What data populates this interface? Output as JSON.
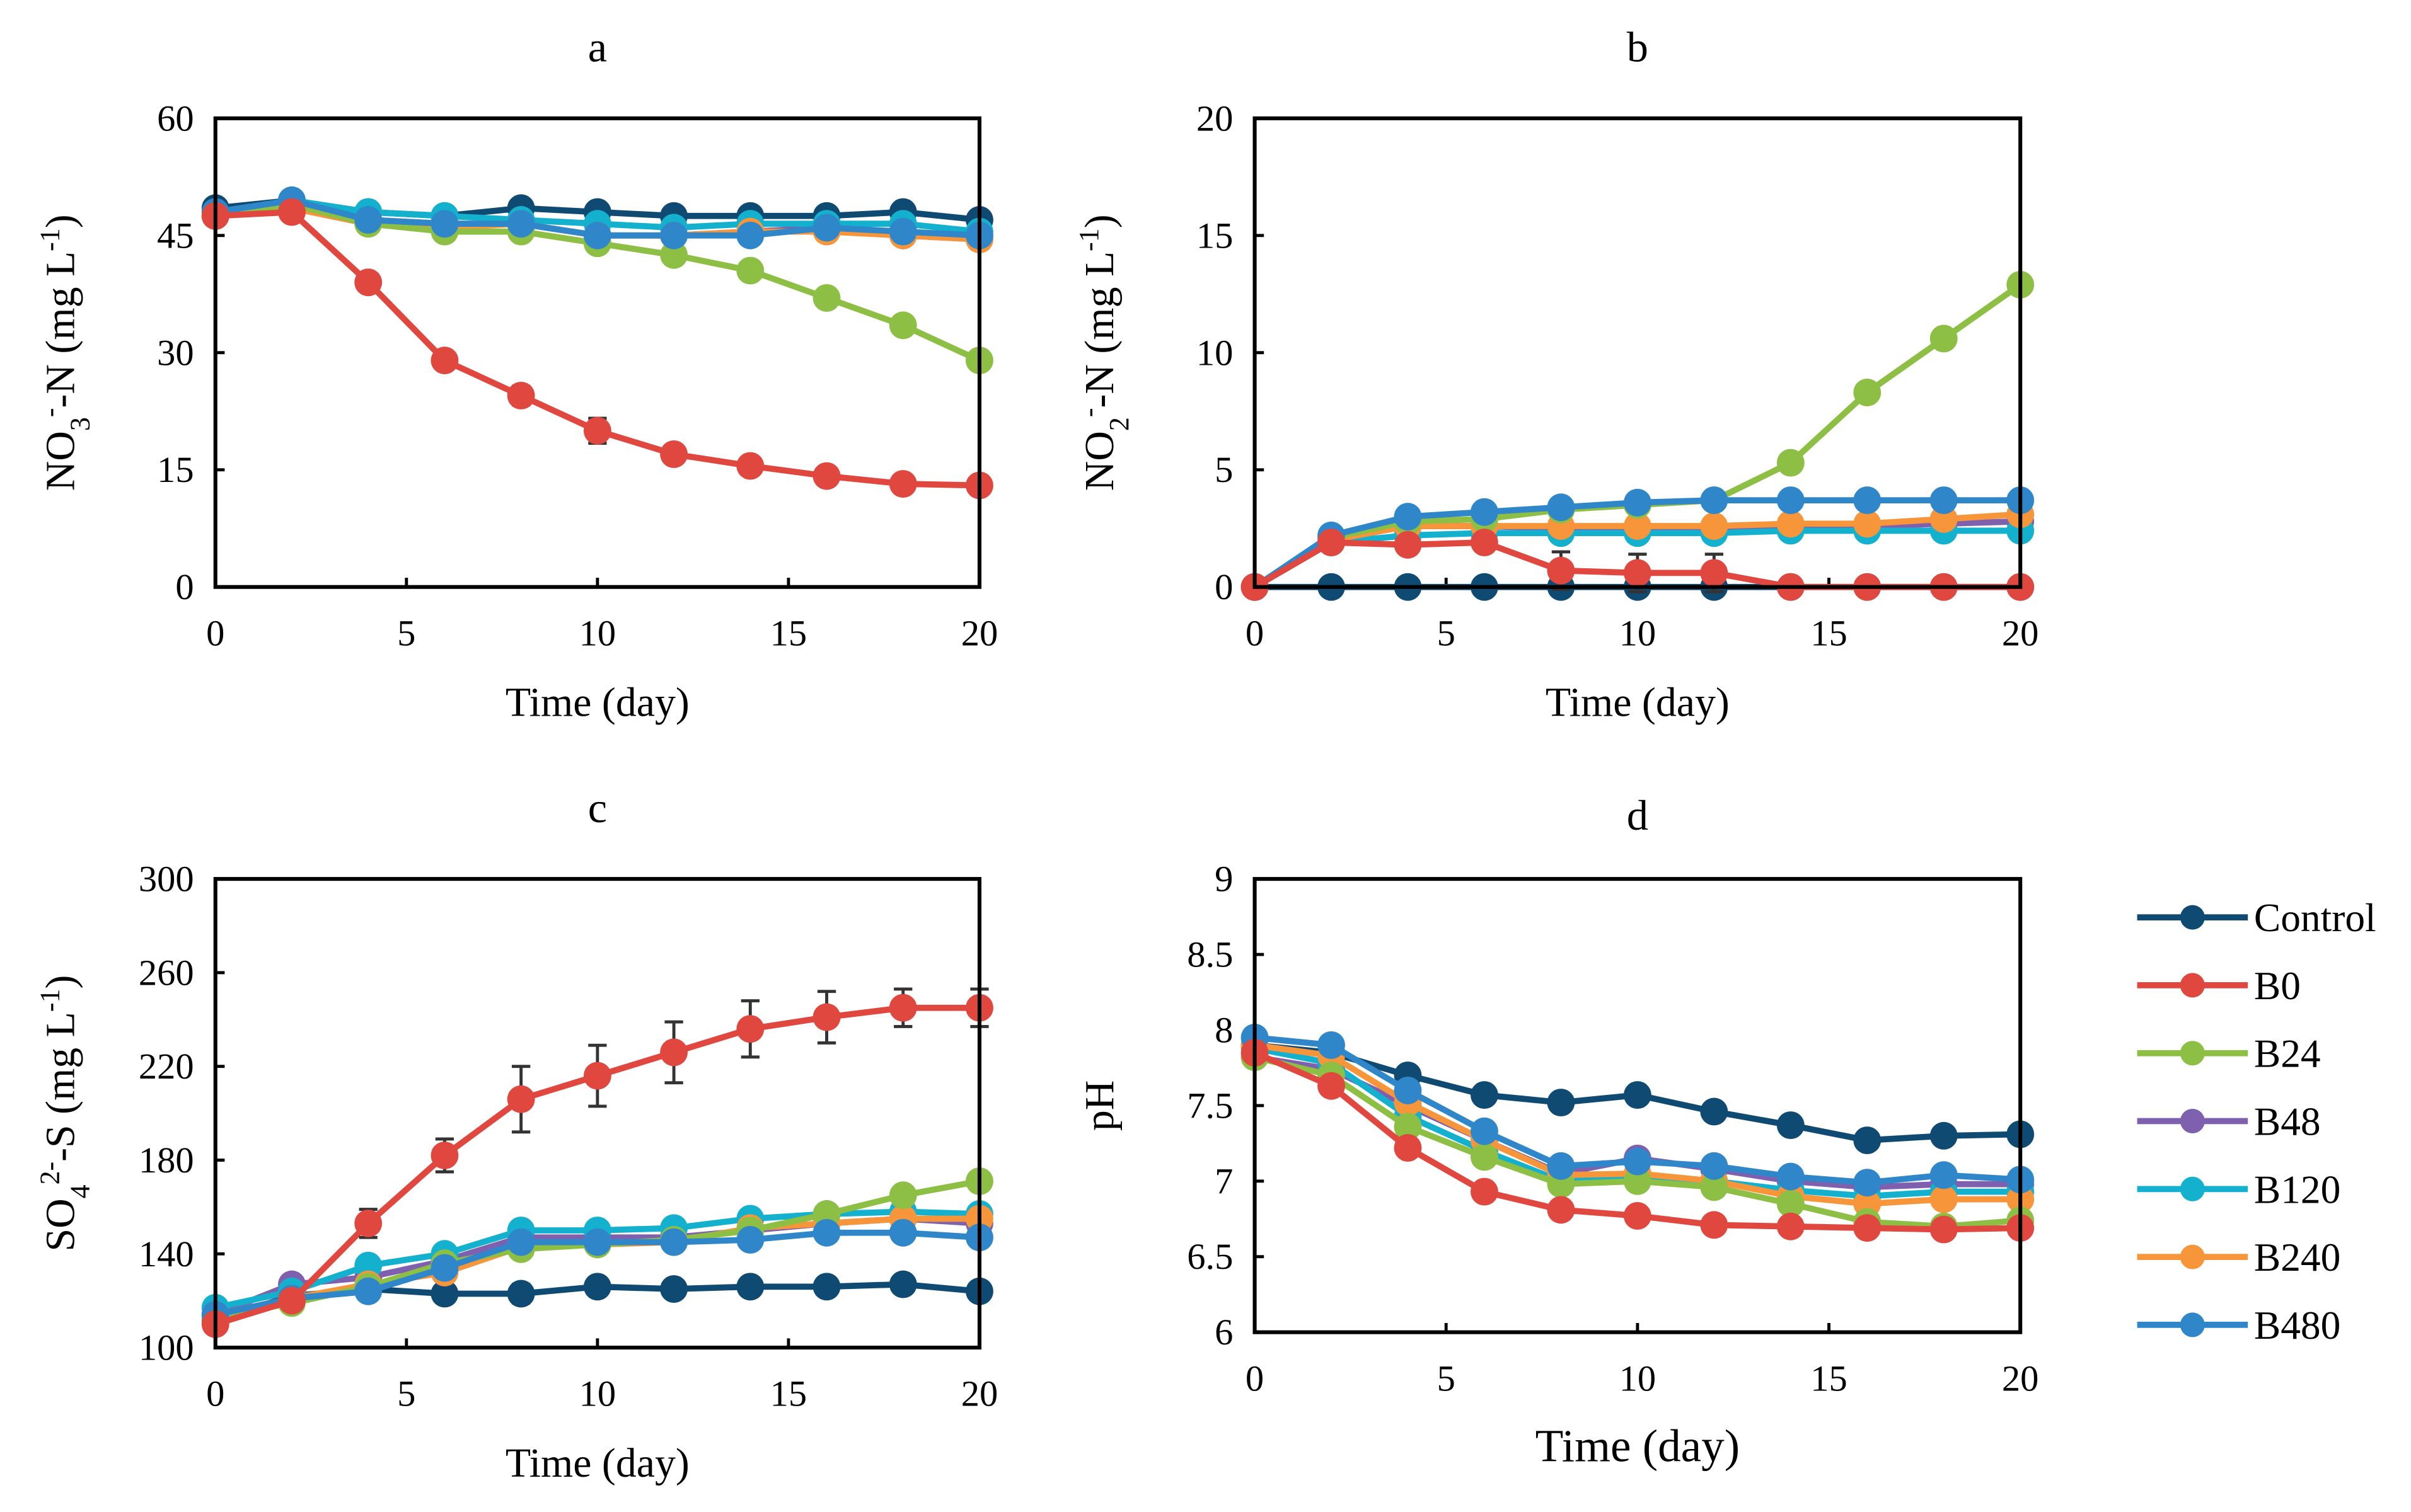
{
  "chart_data": {
    "type": "line",
    "x": [
      0,
      2,
      4,
      6,
      8,
      10,
      12,
      14,
      16,
      18,
      20
    ],
    "xlabel": "Time (day)",
    "xticks": [
      0,
      5,
      10,
      15,
      20
    ],
    "xlim": [
      0,
      20
    ],
    "legend": {
      "placement": "right",
      "entries": [
        "Control",
        "B0",
        "B24",
        "B48",
        "B120",
        "B240",
        "B480"
      ]
    },
    "colors": {
      "Control": "#0f4a73",
      "B0": "#e0473f",
      "B24": "#8dbf45",
      "B48": "#7f60ae",
      "B120": "#14b1cf",
      "B240": "#f7953a",
      "B480": "#2f86c8"
    },
    "panels": [
      {
        "title": "a",
        "ylabel": [
          {
            "t": "NO"
          },
          {
            "t": "3",
            "s": "sub"
          },
          {
            "t": "-",
            "s": "sup"
          },
          {
            "t": "-N (mg L"
          },
          {
            "t": "-1",
            "s": "sup"
          },
          {
            "t": ")"
          }
        ],
        "ylim": [
          0,
          60
        ],
        "yticks": [
          "0",
          "15",
          "30",
          "45",
          "60"
        ],
        "series": [
          {
            "name": "Control",
            "values": [
              48.5,
              49.5,
              48,
              47.5,
              48.5,
              48,
              47.5,
              47.5,
              47.5,
              48,
              47
            ]
          },
          {
            "name": "B0",
            "values": [
              47.5,
              48,
              39,
              29,
              24.5,
              20,
              17,
              15.5,
              14.2,
              13.2,
              13
            ],
            "errors": [
              0,
              0,
              0.5,
              0.8,
              1.2,
              1.6,
              0.8,
              0.5,
              0.5,
              0.5,
              0.5
            ]
          },
          {
            "name": "B24",
            "values": [
              47.5,
              49,
              46.5,
              45.5,
              45.5,
              44,
              42.5,
              40.5,
              37,
              33.5,
              29
            ]
          },
          {
            "name": "B48",
            "values": [
              47.5,
              49,
              47,
              46.5,
              46.5,
              45,
              45,
              45.5,
              46,
              45,
              44.5
            ]
          },
          {
            "name": "B120",
            "values": [
              48,
              49.5,
              48,
              47.5,
              47,
              46.5,
              46,
              46.5,
              46.5,
              46.5,
              45.5
            ]
          },
          {
            "name": "B240",
            "values": [
              47.5,
              48.5,
              46.5,
              46,
              46.5,
              45,
              45,
              45.5,
              45.5,
              45,
              44.5
            ]
          },
          {
            "name": "B480",
            "values": [
              48,
              49.5,
              47,
              46.5,
              46.5,
              45,
              45,
              45,
              46,
              45.5,
              45
            ]
          }
        ]
      },
      {
        "title": "b",
        "ylabel": [
          {
            "t": "NO"
          },
          {
            "t": "2",
            "s": "sub"
          },
          {
            "t": "-",
            "s": "sup"
          },
          {
            "t": "-N (mg L"
          },
          {
            "t": "-1",
            "s": "sup"
          },
          {
            "t": ")"
          }
        ],
        "ylim": [
          0,
          20
        ],
        "yticks": [
          "0",
          "5",
          "10",
          "15",
          "20"
        ],
        "series": [
          {
            "name": "Control",
            "values": [
              0,
              0,
              0,
              0,
              0,
              0,
              0,
              0,
              0,
              0,
              0
            ]
          },
          {
            "name": "B0",
            "values": [
              0,
              1.9,
              1.8,
              1.9,
              0.7,
              0.6,
              0.6,
              0,
              0,
              0,
              0
            ],
            "errors": [
              0,
              0,
              0,
              0,
              0.8,
              0.8,
              0.8,
              0,
              0,
              0,
              0
            ]
          },
          {
            "name": "B24",
            "values": [
              0,
              2.1,
              2.8,
              2.9,
              3.3,
              3.5,
              3.7,
              5.3,
              8.3,
              10.6,
              12.9
            ]
          },
          {
            "name": "B48",
            "values": [
              0,
              2,
              2.6,
              2.6,
              2.5,
              2.5,
              2.5,
              2.6,
              2.6,
              2.7,
              2.8
            ]
          },
          {
            "name": "B120",
            "values": [
              0,
              1.9,
              2.2,
              2.3,
              2.3,
              2.3,
              2.3,
              2.4,
              2.4,
              2.4,
              2.4
            ]
          },
          {
            "name": "B240",
            "values": [
              0,
              2,
              2.6,
              2.6,
              2.6,
              2.6,
              2.6,
              2.7,
              2.7,
              2.9,
              3.1
            ]
          },
          {
            "name": "B480",
            "values": [
              0,
              2.2,
              3,
              3.2,
              3.4,
              3.6,
              3.7,
              3.7,
              3.7,
              3.7,
              3.7
            ]
          }
        ]
      },
      {
        "title": "c",
        "ylabel": [
          {
            "t": "SO"
          },
          {
            "t": "4",
            "s": "sub"
          },
          {
            "t": "2-",
            "s": "sup"
          },
          {
            "t": "-S (mg L"
          },
          {
            "t": "-1",
            "s": "sup"
          },
          {
            "t": ")"
          }
        ],
        "ylim": [
          100,
          300
        ],
        "yticks": [
          "100",
          "140",
          "180",
          "220",
          "260",
          "300"
        ],
        "series": [
          {
            "name": "Control",
            "values": [
              112,
              122,
              125,
              123,
              123,
              126,
              125,
              126,
              126,
              127,
              124
            ],
            "errors": [
              0,
              0,
              0,
              0,
              4,
              0,
              0,
              0,
              0,
              0,
              0
            ]
          },
          {
            "name": "B0",
            "values": [
              110,
              120,
              153,
              182,
              206,
              216,
              226,
              236,
              241,
              245,
              245
            ],
            "errors": [
              0,
              3,
              6,
              7,
              14,
              13,
              13,
              12,
              11,
              8,
              8
            ]
          },
          {
            "name": "B24",
            "values": [
              113,
              119,
              126,
              136,
              142,
              144,
              146,
              150,
              157,
              165,
              171
            ]
          },
          {
            "name": "B48",
            "values": [
              114,
              127,
              130,
              137,
              147,
              147,
              147,
              150,
              153,
              155,
              153
            ]
          },
          {
            "name": "B120",
            "values": [
              117,
              124,
              135,
              140,
              150,
              150,
              151,
              155,
              157,
              158,
              157
            ]
          },
          {
            "name": "B240",
            "values": [
              114,
              121,
              127,
              132,
              143,
              144,
              145,
              151,
              153,
              155,
              155
            ]
          },
          {
            "name": "B480",
            "values": [
              114,
              121,
              124,
              134,
              145,
              145,
              145,
              146,
              149,
              149,
              147
            ]
          }
        ]
      },
      {
        "title": "d",
        "ylabel": [
          {
            "t": "pH"
          }
        ],
        "ylim": [
          6,
          9
        ],
        "yticks": [
          "6",
          "6.5",
          "7",
          "7.5",
          "8",
          "8.5",
          "9"
        ],
        "series": [
          {
            "name": "Control",
            "values": [
              7.9,
              7.85,
              7.7,
              7.57,
              7.52,
              7.57,
              7.46,
              7.37,
              7.27,
              7.3,
              7.31
            ]
          },
          {
            "name": "B0",
            "values": [
              7.85,
              7.63,
              7.22,
              6.93,
              6.81,
              6.77,
              6.71,
              6.7,
              6.69,
              6.68,
              6.69
            ]
          },
          {
            "name": "B24",
            "values": [
              7.82,
              7.7,
              7.36,
              7.16,
              6.98,
              7.0,
              6.96,
              6.85,
              6.73,
              6.7,
              6.74
            ]
          },
          {
            "name": "B48",
            "values": [
              7.82,
              7.74,
              7.5,
              7.27,
              7.05,
              7.15,
              7.08,
              7.0,
              6.96,
              6.98,
              6.98
            ]
          },
          {
            "name": "B120",
            "values": [
              7.88,
              7.78,
              7.43,
              7.2,
              7.0,
              7.04,
              7.0,
              6.94,
              6.9,
              6.93,
              6.93
            ]
          },
          {
            "name": "B240",
            "values": [
              7.9,
              7.83,
              7.52,
              7.27,
              7.04,
              7.05,
              7.0,
              6.9,
              6.85,
              6.88,
              6.88
            ]
          },
          {
            "name": "B480",
            "values": [
              7.95,
              7.9,
              7.6,
              7.33,
              7.1,
              7.13,
              7.1,
              7.03,
              6.99,
              7.04,
              7.01
            ]
          }
        ]
      }
    ]
  }
}
